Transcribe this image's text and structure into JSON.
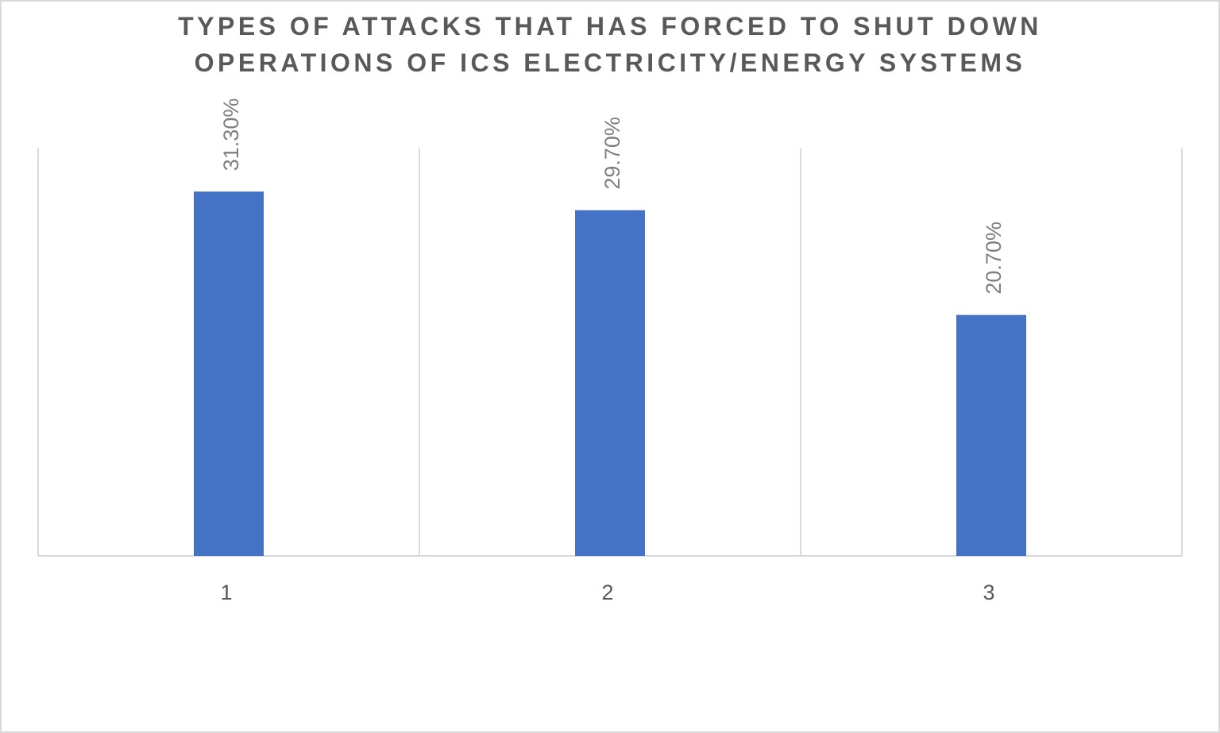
{
  "chart_data": {
    "type": "bar",
    "title": [
      "TYPES OF ATTACKS THAT HAS FORCED TO SHUT DOWN",
      "OPERATIONS OF ICS ELECTRICITY/ENERGY SYSTEMS"
    ],
    "categories": [
      "1",
      "2",
      "3"
    ],
    "values": [
      31.3,
      29.7,
      20.7
    ],
    "value_labels": [
      "31.30%",
      "29.70%",
      "20.70%"
    ],
    "color": "#4472c4",
    "ylim": [
      0,
      35
    ]
  }
}
